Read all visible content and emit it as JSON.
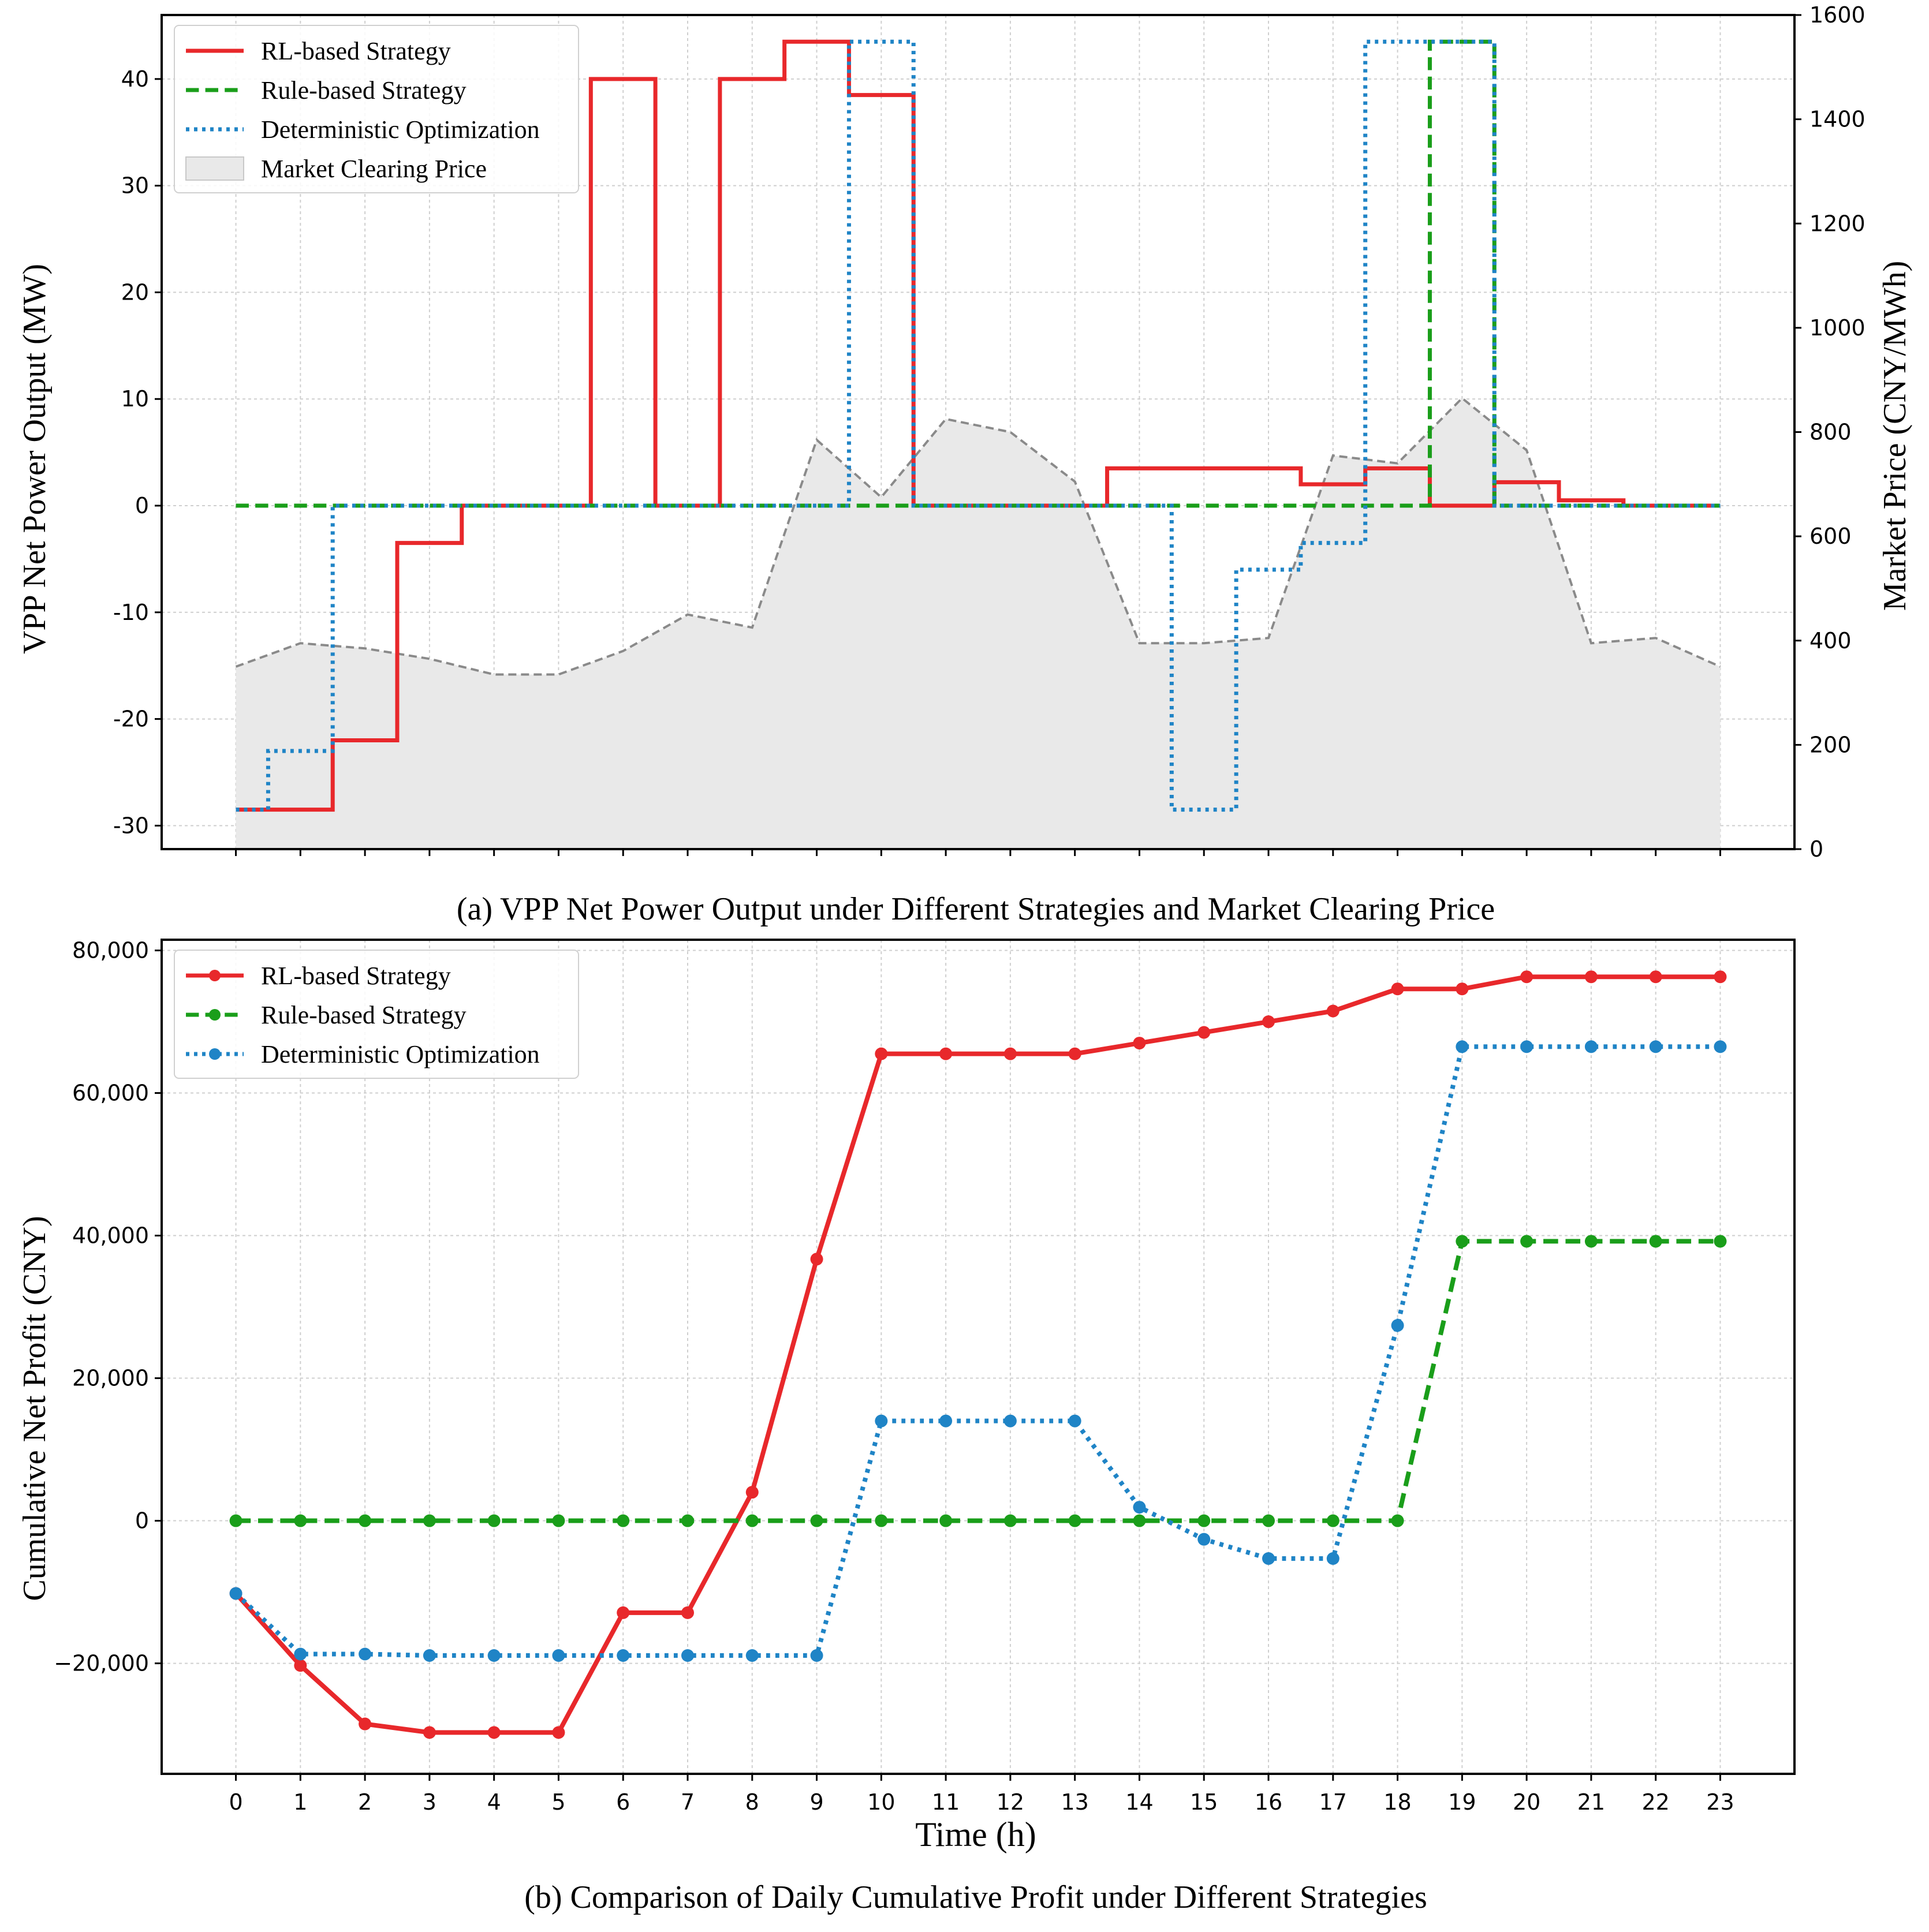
{
  "chart_data": [
    {
      "panel": "a",
      "type": "line",
      "subtype": "step",
      "caption": "(a) VPP Net Power Output under Different Strategies and Market Clearing Price",
      "xlabel": "",
      "ylabel": "VPP Net Power Output (MW)",
      "y2label": "Market Price (CNY/MWh)",
      "x": [
        0,
        1,
        2,
        3,
        4,
        5,
        6,
        7,
        8,
        9,
        10,
        11,
        12,
        13,
        14,
        15,
        16,
        17,
        18,
        19,
        20,
        21,
        22,
        23
      ],
      "xlim": [
        -1.15,
        24.15
      ],
      "ylim": [
        -32.2,
        46
      ],
      "y2lim": [
        0,
        1600
      ],
      "yticks": [
        -30,
        -20,
        -10,
        0,
        10,
        20,
        30,
        40
      ],
      "y2ticks": [
        0,
        200,
        400,
        600,
        800,
        1000,
        1200,
        1400,
        1600
      ],
      "grid": true,
      "legend_position": "upper-left",
      "series": [
        {
          "name": "RL-based Strategy",
          "color": "#e8282b",
          "style": "solid",
          "values": [
            -28.5,
            -28.5,
            -22,
            -3.5,
            0,
            0,
            40,
            0,
            40,
            43.5,
            38.5,
            0,
            0,
            0,
            3.5,
            3.5,
            3.5,
            2,
            3.5,
            0,
            2.2,
            0.5,
            0,
            0
          ]
        },
        {
          "name": "Rule-based Strategy",
          "color": "#1a9e1a",
          "style": "dashed",
          "values": [
            0,
            0,
            0,
            0,
            0,
            0,
            0,
            0,
            0,
            0,
            0,
            0,
            0,
            0,
            0,
            0,
            0,
            0,
            0,
            43.5,
            0,
            0,
            0,
            0
          ]
        },
        {
          "name": "Deterministic Optimization",
          "color": "#1f84c6",
          "style": "dotted",
          "values": [
            -28.5,
            -23,
            0,
            0,
            0,
            0,
            0,
            0,
            0,
            0,
            43.5,
            0,
            0,
            0,
            0,
            -28.5,
            -6,
            -3.5,
            43.5,
            43.5,
            0,
            0,
            0,
            0
          ]
        }
      ],
      "price_series": {
        "name": "Market Clearing Price",
        "color": "#e9e9e9",
        "line_color": "#8a8a8a",
        "values": [
          350,
          395,
          385,
          365,
          335,
          335,
          380,
          450,
          425,
          785,
          675,
          825,
          800,
          705,
          395,
          395,
          405,
          755,
          740,
          865,
          765,
          395,
          405,
          350
        ]
      }
    },
    {
      "panel": "b",
      "type": "line",
      "caption": "(b) Comparison of Daily Cumulative Profit under Different Strategies",
      "xlabel": "Time (h)",
      "ylabel": "Cumulative Net Profit (CNY)",
      "x": [
        0,
        1,
        2,
        3,
        4,
        5,
        6,
        7,
        8,
        9,
        10,
        11,
        12,
        13,
        14,
        15,
        16,
        17,
        18,
        19,
        20,
        21,
        22,
        23
      ],
      "xlim": [
        -1.15,
        24.15
      ],
      "ylim": [
        -35500,
        81500
      ],
      "yticks": [
        -20000,
        0,
        20000,
        40000,
        60000,
        80000
      ],
      "ytick_labels": [
        "−20,000",
        "0",
        "20,000",
        "40,000",
        "60,000",
        "80,000"
      ],
      "grid": true,
      "legend_position": "upper-left",
      "series": [
        {
          "name": "RL-based Strategy",
          "color": "#e8282b",
          "style": "solid",
          "values": [
            -10200,
            -20300,
            -28500,
            -29700,
            -29700,
            -29700,
            -12900,
            -12900,
            4000,
            36700,
            65500,
            65500,
            65500,
            65500,
            67000,
            68500,
            70000,
            71500,
            74600,
            74600,
            76300,
            76300,
            76300,
            76300
          ]
        },
        {
          "name": "Rule-based Strategy",
          "color": "#1a9e1a",
          "style": "dashed",
          "values": [
            0,
            0,
            0,
            0,
            0,
            0,
            0,
            0,
            0,
            0,
            0,
            0,
            0,
            0,
            0,
            0,
            0,
            0,
            0,
            39200,
            39200,
            39200,
            39200,
            39200
          ]
        },
        {
          "name": "Deterministic Optimization",
          "color": "#1f84c6",
          "style": "dotted",
          "values": [
            -10200,
            -18700,
            -18700,
            -18900,
            -18900,
            -18900,
            -18900,
            -18900,
            -18900,
            -18900,
            14000,
            14000,
            14000,
            14000,
            1900,
            -2600,
            -5300,
            -5300,
            27400,
            66500,
            66500,
            66500,
            66500,
            66500
          ]
        }
      ]
    }
  ]
}
